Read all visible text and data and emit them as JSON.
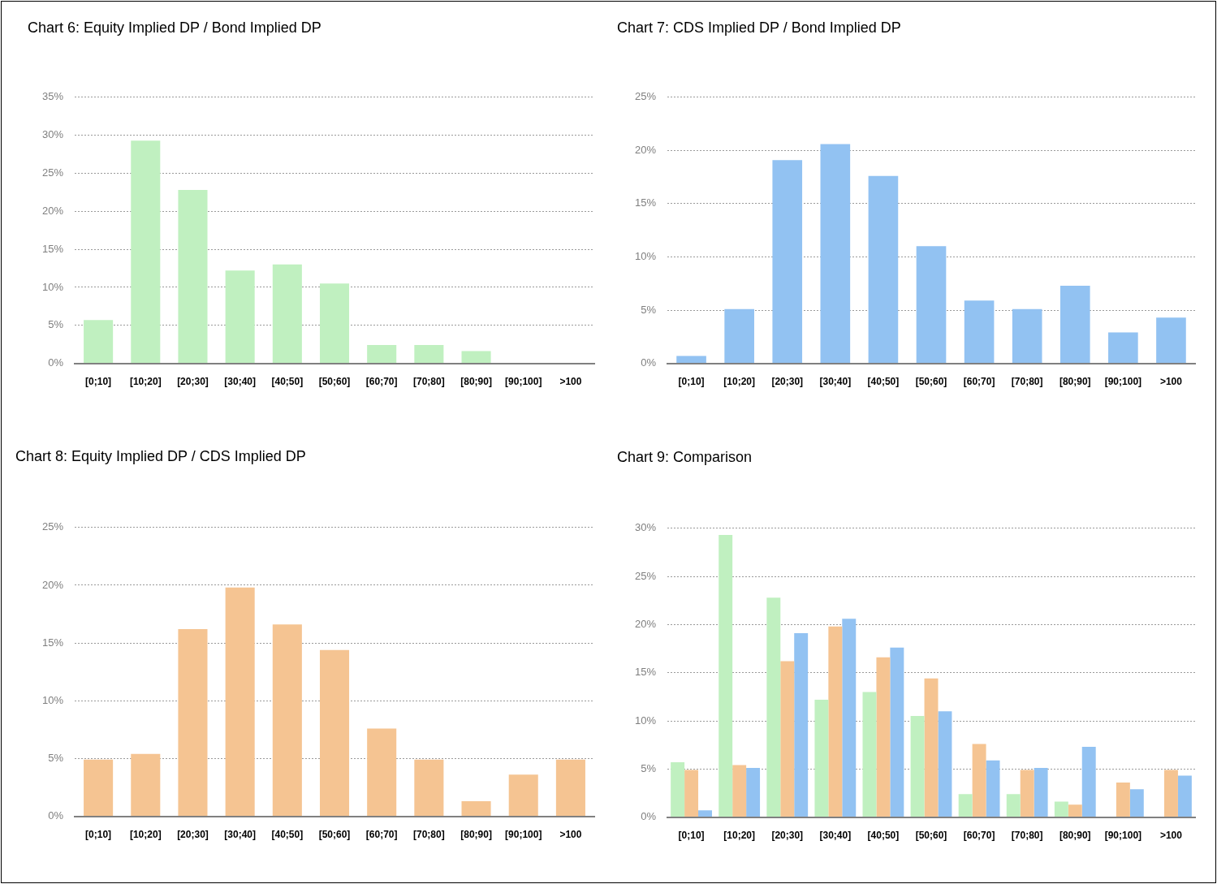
{
  "chart_data": [
    {
      "type": "bar",
      "title": "Chart 6: Equity Implied DP / Bond Implied DP",
      "categories": [
        "[0;10]",
        "[10;20]",
        "[20;30]",
        "[30;40]",
        "[40;50]",
        "[50;60]",
        "[60;70]",
        "[70;80]",
        "[80;90]",
        "[90;100]",
        ">100"
      ],
      "values": [
        5.7,
        29.3,
        22.8,
        12.2,
        13.0,
        10.5,
        2.4,
        2.4,
        1.6,
        0,
        0
      ],
      "color": "#c0f0c0",
      "ylim": [
        0,
        35
      ],
      "yticks": [
        {
          "value": 0,
          "label": "0%"
        },
        {
          "value": 5,
          "label": "5%"
        },
        {
          "value": 10,
          "label": "10%"
        },
        {
          "value": 15,
          "label": "15%"
        },
        {
          "value": 20,
          "label": "20%"
        },
        {
          "value": 25,
          "label": "25%"
        },
        {
          "value": 30,
          "label": "30%"
        },
        {
          "value": 35,
          "label": "35%"
        }
      ],
      "grid": "y"
    },
    {
      "type": "bar",
      "title": "Chart 7: CDS Implied DP / Bond Implied DP",
      "categories": [
        "[0;10]",
        "[10;20]",
        "[20;30]",
        "[30;40]",
        "[40;50]",
        "[50;60]",
        "[60;70]",
        "[70;80]",
        "[80;90]",
        "[90;100]",
        ">100"
      ],
      "values": [
        0.7,
        5.1,
        19.1,
        20.6,
        17.6,
        11.0,
        5.9,
        5.1,
        7.3,
        2.9,
        4.3
      ],
      "color": "#92c2f2",
      "ylim": [
        0,
        25
      ],
      "yticks": [
        {
          "value": 0,
          "label": "0%"
        },
        {
          "value": 5,
          "label": "5%"
        },
        {
          "value": 10,
          "label": "10%"
        },
        {
          "value": 15,
          "label": "15%"
        },
        {
          "value": 20,
          "label": "20%"
        },
        {
          "value": 25,
          "label": "25%"
        }
      ],
      "grid": "y"
    },
    {
      "type": "bar",
      "title": "Chart 8: Equity Implied DP / CDS Implied DP",
      "categories": [
        "[0;10]",
        "[10;20]",
        "[20;30]",
        "[30;40]",
        "[40;50]",
        "[50;60]",
        "[60;70]",
        "[70;80]",
        "[80;90]",
        "[90;100]",
        ">100"
      ],
      "values": [
        4.9,
        5.4,
        16.2,
        19.8,
        16.6,
        14.4,
        7.6,
        4.9,
        1.3,
        3.6,
        4.9
      ],
      "color": "#f5c492",
      "ylim": [
        0,
        25
      ],
      "yticks": [
        {
          "value": 0,
          "label": "0%"
        },
        {
          "value": 5,
          "label": "5%"
        },
        {
          "value": 10,
          "label": "10%"
        },
        {
          "value": 15,
          "label": "15%"
        },
        {
          "value": 20,
          "label": "20%"
        },
        {
          "value": 25,
          "label": "25%"
        }
      ],
      "grid": "y"
    },
    {
      "type": "bar",
      "title": "Chart 9: Comparison",
      "categories": [
        "[0;10]",
        "[10;20]",
        "[20;30]",
        "[30;40]",
        "[40;50]",
        "[50;60]",
        "[60;70]",
        "[70;80]",
        "[80;90]",
        "[90;100]",
        ">100"
      ],
      "series": [
        {
          "color": "#c0f0c0",
          "values": [
            5.7,
            29.3,
            22.8,
            12.2,
            13.0,
            10.5,
            2.4,
            2.4,
            1.6,
            0,
            0
          ]
        },
        {
          "color": "#f5c492",
          "values": [
            4.9,
            5.4,
            16.2,
            19.8,
            16.6,
            14.4,
            7.6,
            4.9,
            1.3,
            3.6,
            4.9
          ]
        },
        {
          "color": "#92c2f2",
          "values": [
            0.7,
            5.1,
            19.1,
            20.6,
            17.6,
            11.0,
            5.9,
            5.1,
            7.3,
            2.9,
            4.3
          ]
        }
      ],
      "ylim": [
        0,
        30
      ],
      "yticks": [
        {
          "value": 0,
          "label": "0%"
        },
        {
          "value": 5,
          "label": "5%"
        },
        {
          "value": 10,
          "label": "10%"
        },
        {
          "value": 15,
          "label": "15%"
        },
        {
          "value": 20,
          "label": "20%"
        },
        {
          "value": 25,
          "label": "25%"
        },
        {
          "value": 30,
          "label": "30%"
        }
      ],
      "grid": "y"
    }
  ]
}
